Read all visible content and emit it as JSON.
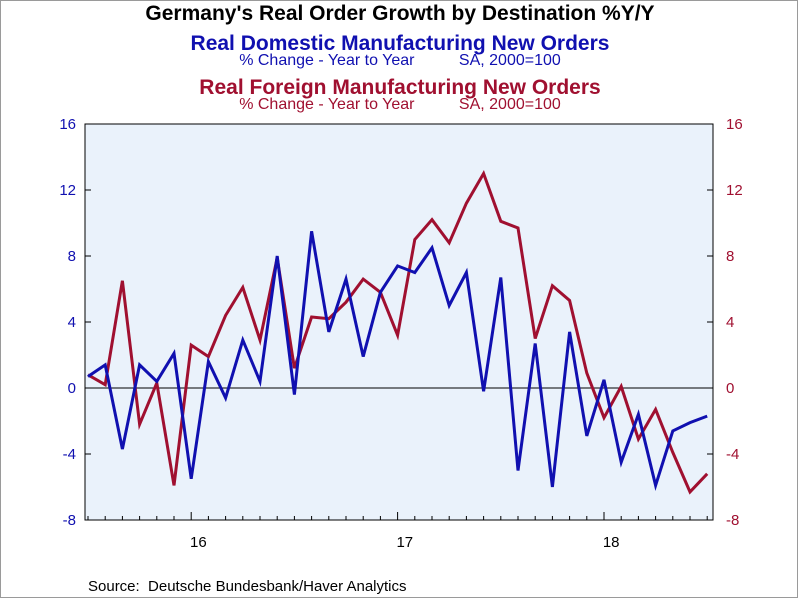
{
  "chart_data": {
    "type": "line",
    "title": "Germany's Real Order Growth by Destination %Y/Y",
    "series": [
      {
        "name": "Real Domestic Manufacturing New Orders",
        "subtitle": "% Change - Year to Year          SA, 2000=100",
        "color": "#1010b0",
        "axis": "left",
        "values": [
          0.7,
          1.4,
          -3.7,
          1.4,
          0.4,
          2.1,
          -5.5,
          1.6,
          -0.6,
          2.9,
          0.4,
          8.0,
          -0.4,
          9.5,
          3.4,
          6.6,
          1.9,
          5.8,
          7.4,
          7.0,
          8.5,
          5.0,
          7.0,
          -0.2,
          6.7,
          -5.0,
          2.7,
          -6.0,
          3.4,
          -2.9,
          0.5,
          -4.5,
          -1.6,
          -5.9,
          -2.6,
          -2.1,
          -1.7
        ]
      },
      {
        "name": "Real Foreign Manufacturing New Orders",
        "subtitle": "% Change - Year to Year          SA, 2000=100",
        "color": "#a01030",
        "axis": "right",
        "values": [
          0.8,
          0.2,
          6.5,
          -2.2,
          0.3,
          -5.9,
          2.6,
          1.9,
          4.4,
          6.1,
          2.9,
          7.9,
          1.2,
          4.3,
          4.2,
          5.2,
          6.6,
          5.8,
          3.2,
          9.0,
          10.2,
          8.8,
          11.2,
          13.0,
          10.1,
          9.7,
          3.0,
          6.2,
          5.3,
          0.9,
          -1.8,
          0.1,
          -3.1,
          -1.3,
          -3.9,
          -6.3,
          -5.2
        ]
      }
    ],
    "x_start": "2015-07",
    "x_ticks": [
      "16",
      "17",
      "18"
    ],
    "y_left": {
      "min": -8,
      "max": 16,
      "ticks": [
        "16",
        "12",
        "8",
        "4",
        "0",
        "-4",
        "-8"
      ]
    },
    "y_right": {
      "min": -8,
      "max": 16,
      "ticks": [
        "16",
        "12",
        "8",
        "4",
        "0",
        "-4",
        "-8"
      ]
    },
    "zero_line": true,
    "source": "Source:  Deutsche Bundesbank/Haver Analytics",
    "colors": {
      "plot_bg": "#eaf2fb",
      "domestic": "#1010b0",
      "foreign": "#a01030"
    }
  }
}
